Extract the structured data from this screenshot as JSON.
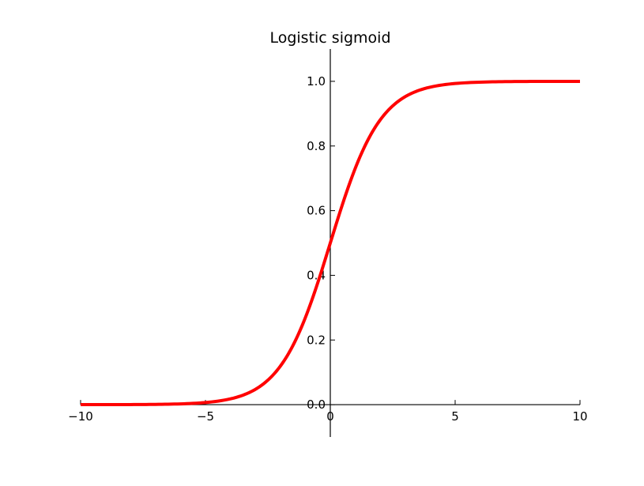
{
  "chart_data": {
    "type": "line",
    "title": "Logistic sigmoid",
    "xlabel": "",
    "ylabel": "",
    "xlim": [
      -10,
      10
    ],
    "ylim": [
      -0.1,
      1.1
    ],
    "xticks": [
      -10,
      -5,
      0,
      5,
      10
    ],
    "xtick_labels": [
      "−10",
      "−5",
      "0",
      "5",
      "10"
    ],
    "yticks": [
      0.0,
      0.2,
      0.4,
      0.6,
      0.8,
      1.0
    ],
    "ytick_labels": [
      "0.0",
      "0.2",
      "0.4",
      "0.6",
      "0.8",
      "1.0"
    ],
    "grid": false,
    "legend": "none",
    "spines": "centered",
    "series": [
      {
        "color": "#ff0000",
        "x": [
          -10,
          -9,
          -8,
          -7,
          -6,
          -5,
          -4,
          -3,
          -2.5,
          -2,
          -1.5,
          -1,
          -0.5,
          0,
          0.5,
          1,
          1.5,
          2,
          2.5,
          3,
          4,
          5,
          6,
          7,
          8,
          9,
          10
        ],
        "y": [
          4.54e-05,
          0.000123,
          0.000335,
          0.000911,
          0.00247,
          0.00669,
          0.018,
          0.0474,
          0.0759,
          0.1192,
          0.1824,
          0.2689,
          0.3775,
          0.5,
          0.6225,
          0.7311,
          0.8176,
          0.8808,
          0.9241,
          0.9526,
          0.982,
          0.9933,
          0.9975,
          0.9991,
          0.99966,
          0.99988,
          0.99995
        ]
      }
    ]
  }
}
